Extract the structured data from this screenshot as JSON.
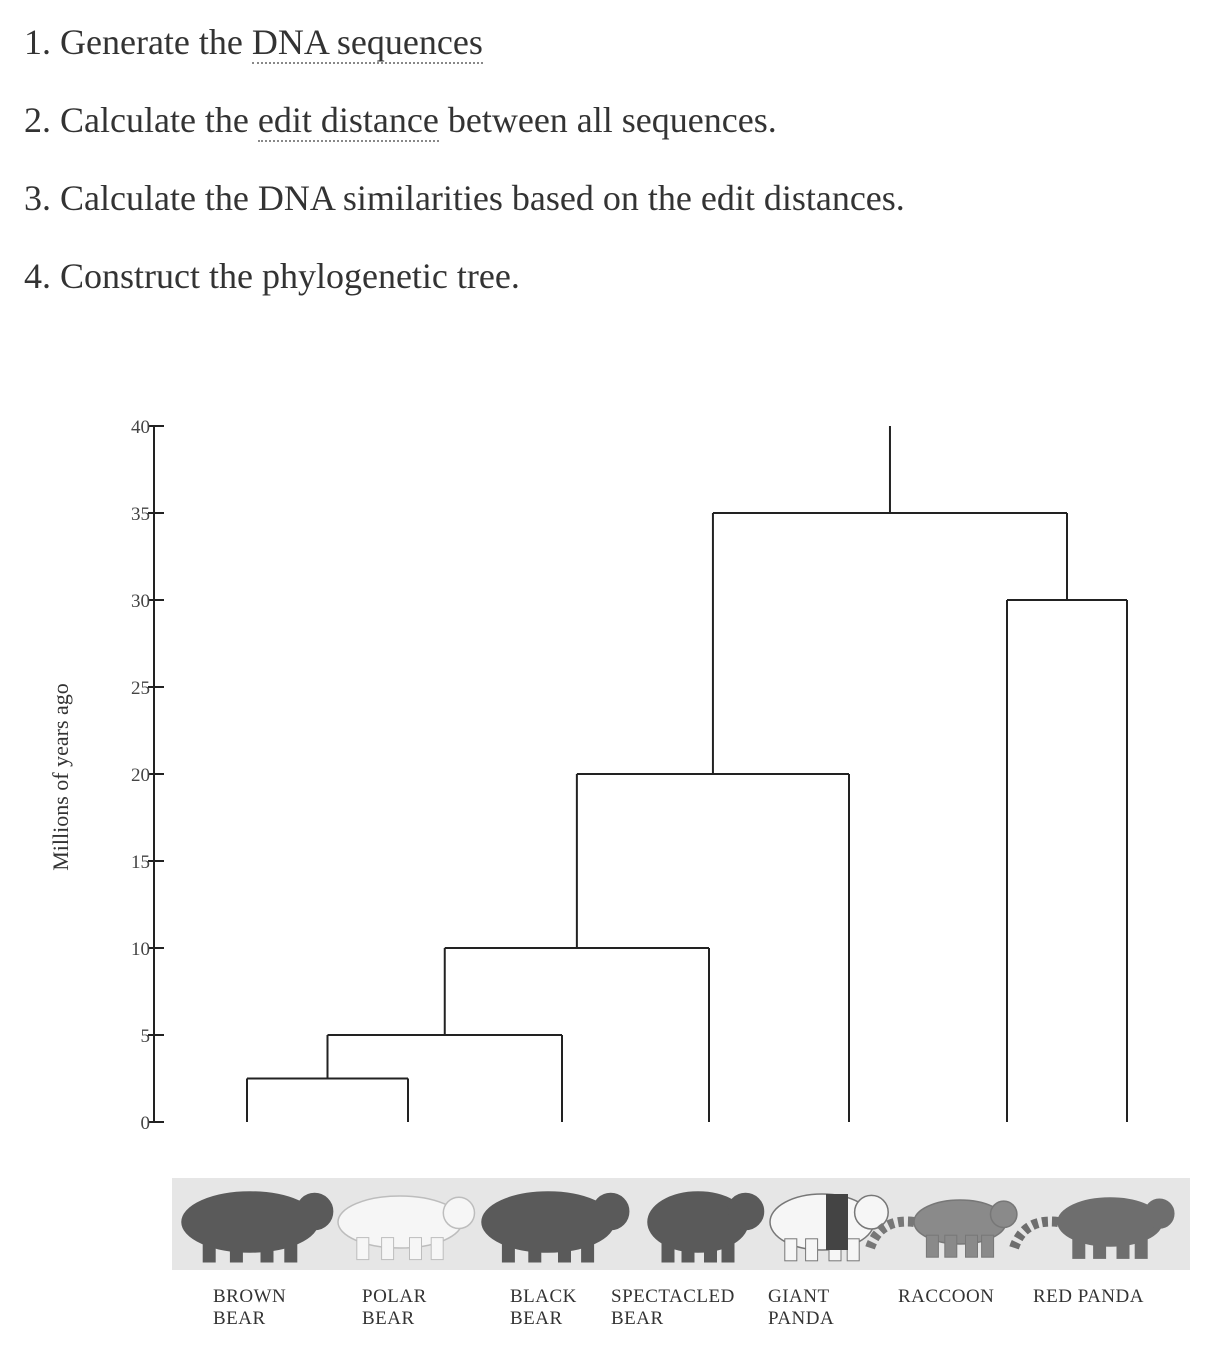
{
  "steps": [
    {
      "number": "1.",
      "before": "Generate the ",
      "link": "DNA sequences",
      "after": ""
    },
    {
      "number": "2.",
      "before": "Calculate the ",
      "link": "edit distance",
      "after": " between all sequences."
    },
    {
      "number": "3.",
      "before": "Calculate the DNA similarities based on the edit distances.",
      "link": "",
      "after": ""
    },
    {
      "number": "4.",
      "before": "Construct the phylogenetic tree.",
      "link": "",
      "after": ""
    }
  ],
  "tree": {
    "axis_label": "Millions of years ago",
    "ticks": [
      0,
      5,
      10,
      15,
      20,
      25,
      30,
      35,
      40
    ],
    "ymax": 40,
    "root_time": 40,
    "species": [
      {
        "id": "brown",
        "line1": "BROWN",
        "line2": "BEAR",
        "image_icon": "brown-bear-icon"
      },
      {
        "id": "polar",
        "line1": "POLAR",
        "line2": "BEAR",
        "image_icon": "polar-bear-icon"
      },
      {
        "id": "black",
        "line1": "BLACK",
        "line2": "BEAR",
        "image_icon": "black-bear-icon"
      },
      {
        "id": "spectacled",
        "line1": "SPECTACLED",
        "line2": "BEAR",
        "image_icon": "spectacled-bear-icon"
      },
      {
        "id": "panda",
        "line1": "GIANT",
        "line2": "PANDA",
        "image_icon": "giant-panda-icon"
      },
      {
        "id": "raccoon",
        "line1": "RACCOON",
        "line2": "",
        "image_icon": "raccoon-icon"
      },
      {
        "id": "redpanda",
        "line1": "RED PANDA",
        "line2": "",
        "image_icon": "red-panda-icon"
      }
    ],
    "clades": [
      {
        "id": "c1",
        "time": 2.5,
        "children": [
          "brown",
          "polar"
        ]
      },
      {
        "id": "c2",
        "time": 5,
        "children": [
          "c1",
          "black"
        ]
      },
      {
        "id": "c3",
        "time": 10,
        "children": [
          "c2",
          "spectacled"
        ]
      },
      {
        "id": "c4",
        "time": 20,
        "children": [
          "c3",
          "panda"
        ]
      },
      {
        "id": "c5",
        "time": 30,
        "children": [
          "raccoon",
          "redpanda"
        ]
      },
      {
        "id": "c6",
        "time": 35,
        "children": [
          "c4",
          "c5"
        ]
      }
    ],
    "root": "c6",
    "colors": {
      "line": "#222222",
      "photo_strip": "#e4e4e4",
      "dark_animal": "#5a5a5a",
      "light_animal": "#f6f6f6"
    }
  }
}
